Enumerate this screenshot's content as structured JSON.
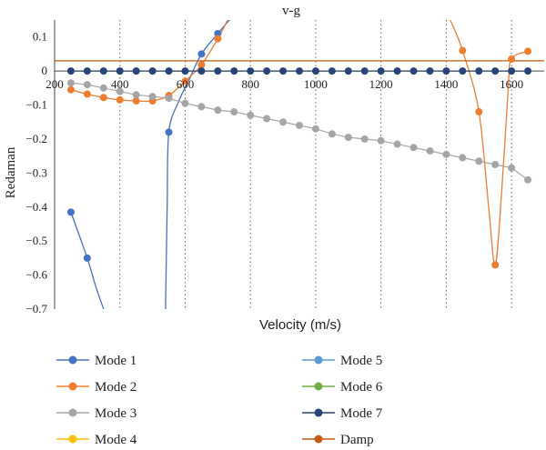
{
  "chart_data": {
    "type": "line",
    "title": "v-g",
    "xlabel": "Velocity (m/s)",
    "ylabel": "Redaman",
    "xlim": [
      200,
      1700
    ],
    "ylim": [
      -0.7,
      0.15
    ],
    "x_ticks": [
      200,
      400,
      600,
      800,
      1000,
      1200,
      1400,
      1600
    ],
    "x_tick_labels": [
      "200",
      "400",
      "600",
      "800",
      "1000",
      "1200",
      "1400",
      "1600"
    ],
    "y_ticks": [
      0.1,
      0,
      -0.1,
      -0.2,
      -0.3,
      -0.4,
      -0.5,
      -0.6,
      -0.7
    ],
    "y_tick_labels": [
      "0.1",
      "0",
      "−0.1",
      "−0.2",
      "−0.3",
      "−0.4",
      "−0.5",
      "−0.6",
      "−0.7"
    ],
    "grid": "vertical dotted",
    "legend": "bottom, two columns",
    "series": [
      {
        "name": "Mode 1",
        "color": "#4472C4",
        "points": [
          [
            250,
            -0.415
          ],
          [
            300,
            -0.55
          ],
          [
            550,
            -0.18
          ],
          [
            650,
            0.05
          ],
          [
            700,
            0.11
          ]
        ],
        "curves": [
          [
            [
              250,
              -0.415
            ],
            [
              300,
              -0.55
            ],
            [
              325,
              -0.63
            ],
            [
              350,
              -0.7
            ]
          ],
          [
            [
              540,
              -0.7
            ],
            [
              545,
              -0.4
            ],
            [
              550,
              -0.18
            ],
            [
              580,
              -0.09
            ],
            [
              610,
              -0.03
            ],
            [
              650,
              0.05
            ],
            [
              700,
              0.11
            ],
            [
              740,
              0.155
            ]
          ]
        ]
      },
      {
        "name": "Mode 2",
        "color": "#ED7D31",
        "points": [
          [
            250,
            -0.055
          ],
          [
            300,
            -0.068
          ],
          [
            350,
            -0.078
          ],
          [
            400,
            -0.085
          ],
          [
            450,
            -0.088
          ],
          [
            500,
            -0.088
          ],
          [
            550,
            -0.072
          ],
          [
            600,
            -0.03
          ],
          [
            650,
            0.018
          ],
          [
            700,
            0.095
          ],
          [
            1450,
            0.06
          ],
          [
            1500,
            -0.12
          ],
          [
            1550,
            -0.57
          ],
          [
            1600,
            0.035
          ],
          [
            1650,
            0.058
          ]
        ],
        "curves": [
          [
            [
              250,
              -0.055
            ],
            [
              300,
              -0.068
            ],
            [
              350,
              -0.078
            ],
            [
              400,
              -0.085
            ],
            [
              450,
              -0.088
            ],
            [
              500,
              -0.088
            ],
            [
              550,
              -0.072
            ],
            [
              600,
              -0.03
            ],
            [
              650,
              0.018
            ],
            [
              700,
              0.095
            ],
            [
              730,
              0.15
            ]
          ],
          [
            [
              1410,
              0.155
            ],
            [
              1450,
              0.06
            ],
            [
              1500,
              -0.12
            ],
            [
              1530,
              -0.4
            ],
            [
              1550,
              -0.57
            ],
            [
              1570,
              -0.35
            ],
            [
              1590,
              -0.05
            ],
            [
              1600,
              0.035
            ],
            [
              1650,
              0.058
            ]
          ]
        ]
      },
      {
        "name": "Mode 3",
        "color": "#A5A5A5",
        "points": [
          [
            250,
            -0.035
          ],
          [
            300,
            -0.04
          ],
          [
            350,
            -0.05
          ],
          [
            400,
            -0.06
          ],
          [
            450,
            -0.07
          ],
          [
            500,
            -0.075
          ],
          [
            550,
            -0.08
          ],
          [
            600,
            -0.095
          ],
          [
            650,
            -0.105
          ],
          [
            700,
            -0.115
          ],
          [
            750,
            -0.12
          ],
          [
            800,
            -0.13
          ],
          [
            850,
            -0.14
          ],
          [
            900,
            -0.15
          ],
          [
            950,
            -0.16
          ],
          [
            1000,
            -0.17
          ],
          [
            1050,
            -0.185
          ],
          [
            1100,
            -0.195
          ],
          [
            1150,
            -0.2
          ],
          [
            1200,
            -0.205
          ],
          [
            1250,
            -0.215
          ],
          [
            1300,
            -0.225
          ],
          [
            1350,
            -0.235
          ],
          [
            1400,
            -0.245
          ],
          [
            1450,
            -0.255
          ],
          [
            1500,
            -0.265
          ],
          [
            1550,
            -0.275
          ],
          [
            1600,
            -0.285
          ],
          [
            1650,
            -0.32
          ]
        ],
        "curves": []
      },
      {
        "name": "Mode 4",
        "color": "#FFC000",
        "points": [],
        "curves": []
      },
      {
        "name": "Mode 5",
        "color": "#5B9BD5",
        "points": [],
        "curves": []
      },
      {
        "name": "Mode 6",
        "color": "#70AD47",
        "points": [],
        "curves": []
      },
      {
        "name": "Mode 7",
        "color": "#264478",
        "points": [
          [
            250,
            0
          ],
          [
            300,
            0
          ],
          [
            350,
            0
          ],
          [
            400,
            0
          ],
          [
            450,
            0
          ],
          [
            500,
            0
          ],
          [
            550,
            0
          ],
          [
            600,
            0
          ],
          [
            650,
            0
          ],
          [
            700,
            0
          ],
          [
            750,
            0
          ],
          [
            800,
            0
          ],
          [
            850,
            0
          ],
          [
            900,
            0
          ],
          [
            950,
            0
          ],
          [
            1000,
            0
          ],
          [
            1050,
            0
          ],
          [
            1100,
            0
          ],
          [
            1150,
            0
          ],
          [
            1200,
            0
          ],
          [
            1250,
            0
          ],
          [
            1300,
            0
          ],
          [
            1350,
            0
          ],
          [
            1400,
            0
          ],
          [
            1450,
            0
          ],
          [
            1500,
            0
          ],
          [
            1550,
            0
          ],
          [
            1600,
            0
          ],
          [
            1650,
            0
          ]
        ],
        "curves": []
      },
      {
        "name": "Damp",
        "color": "#C55A11",
        "hline": 0.03,
        "points": [],
        "curves": []
      }
    ]
  }
}
